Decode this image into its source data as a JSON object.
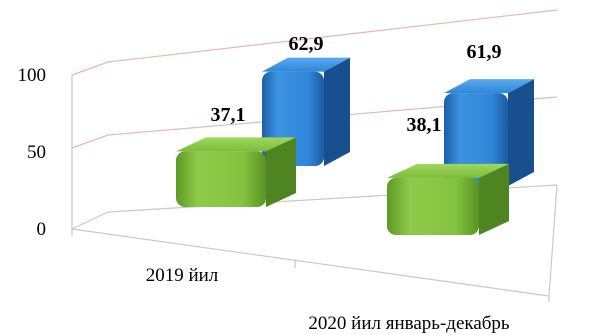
{
  "chart_data": {
    "type": "bar",
    "style": "3d-bars",
    "categories": [
      "2019 йил",
      "2020 йил январь-декабрь"
    ],
    "series": [
      {
        "values": [
          37.1,
          38.1
        ],
        "color": "#7dbb3a",
        "labels": [
          "37,1",
          "38,1"
        ]
      },
      {
        "values": [
          62.9,
          61.9
        ],
        "color": "#2f86d8",
        "labels": [
          "62,9",
          "61,9"
        ]
      }
    ],
    "yticks": [
      0,
      50,
      100
    ],
    "ytick_labels": [
      "0",
      "50",
      "100"
    ],
    "ylim": [
      0,
      100
    ],
    "grid": true,
    "legend": "none"
  }
}
